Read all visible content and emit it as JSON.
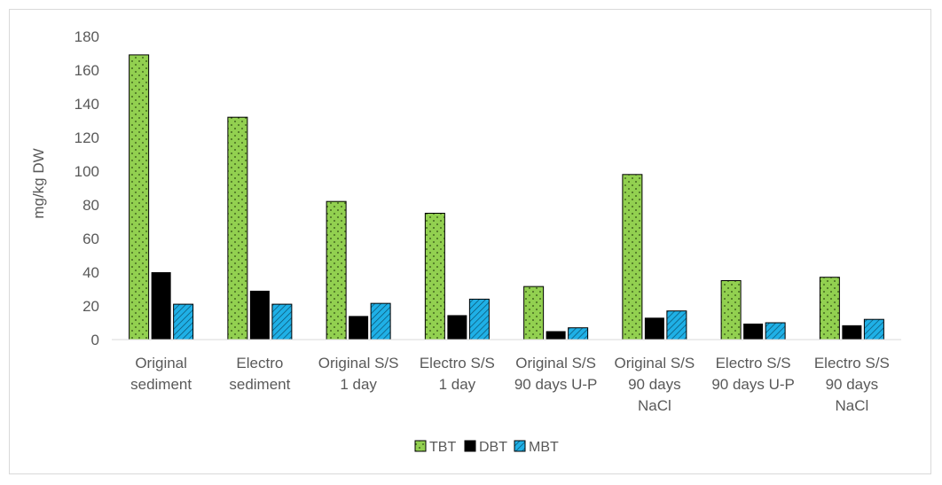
{
  "chart_data": {
    "type": "bar",
    "categories": [
      [
        "Original",
        "sediment"
      ],
      [
        "Electro",
        "sediment"
      ],
      [
        "Original S/S",
        "1 day"
      ],
      [
        "Electro S/S",
        "1 day"
      ],
      [
        "Original S/S",
        "90 days U-P"
      ],
      [
        "Original S/S",
        "90 days",
        "NaCl"
      ],
      [
        "Electro S/S",
        "90 days U-P"
      ],
      [
        "Electro S/S",
        "90 days",
        "NaCl"
      ]
    ],
    "series": [
      {
        "name": "TBT",
        "color": "#92d050",
        "pattern": "dots",
        "values": [
          169,
          132,
          82,
          75,
          31.5,
          98,
          35,
          37
        ]
      },
      {
        "name": "DBT",
        "color": "#000000",
        "pattern": "solid",
        "values": [
          40,
          29,
          14,
          14.5,
          5,
          13,
          9.5,
          8.5
        ]
      },
      {
        "name": "MBT",
        "color": "#1fb0e6",
        "pattern": "hatch",
        "values": [
          21,
          21,
          21.5,
          24,
          7,
          17,
          10,
          12
        ]
      }
    ],
    "title": "",
    "xlabel": "",
    "ylabel": "mg/kg DW",
    "ylim": [
      0,
      180
    ],
    "yticks": [
      0,
      20,
      40,
      60,
      80,
      100,
      120,
      140,
      160,
      180
    ],
    "grid": false,
    "legend": "bottom"
  }
}
